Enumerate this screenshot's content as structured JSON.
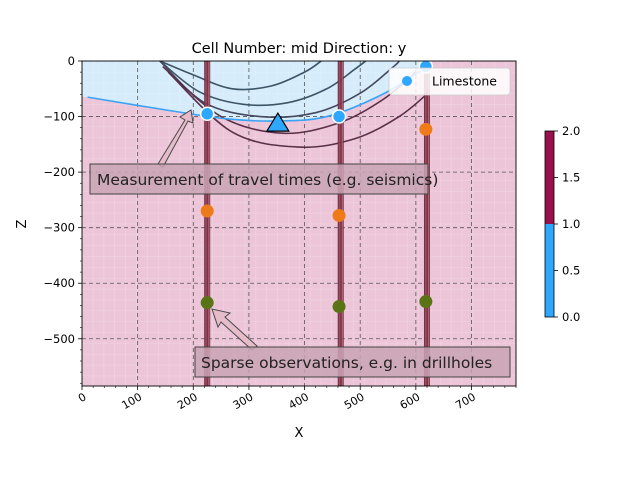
{
  "chart_data": {
    "type": "scatter",
    "title": "Cell Number: mid Direction: y",
    "xlabel": "X",
    "ylabel": "Z",
    "xlim": [
      0,
      780
    ],
    "ylim": [
      -585,
      0
    ],
    "xticks": [
      0,
      100,
      200,
      300,
      400,
      500,
      600,
      700
    ],
    "yticks": [
      0,
      -100,
      -200,
      -300,
      -400,
      -500
    ],
    "grid": true,
    "legend": {
      "placement": "top-right",
      "entries": [
        "Limestone"
      ]
    },
    "colorbar": {
      "min": 0.0,
      "max": 2.0,
      "ticks": [
        "0.0",
        "0.5",
        "1.0",
        "1.5",
        "2.0"
      ],
      "colors": [
        "#2ea8ff",
        "#98104e"
      ]
    },
    "regions": {
      "upper_color": "#d6ecfb",
      "lower_color": "#ecc6d8"
    },
    "surface_boundary": [
      {
        "x": 10,
        "z": -65
      },
      {
        "x": 150,
        "z": -88
      },
      {
        "x": 260,
        "z": -104
      },
      {
        "x": 350,
        "z": -108
      },
      {
        "x": 440,
        "z": -100
      },
      {
        "x": 540,
        "z": -60
      },
      {
        "x": 620,
        "z": -10
      }
    ],
    "contours": [
      [
        {
          "x": 140,
          "z": 0
        },
        {
          "x": 200,
          "z": -25
        },
        {
          "x": 270,
          "z": -50
        },
        {
          "x": 340,
          "z": -45
        },
        {
          "x": 400,
          "z": -20
        },
        {
          "x": 430,
          "z": 0
        }
      ],
      [
        {
          "x": 140,
          "z": 0
        },
        {
          "x": 210,
          "z": -55
        },
        {
          "x": 290,
          "z": -78
        },
        {
          "x": 370,
          "z": -75
        },
        {
          "x": 440,
          "z": -50
        },
        {
          "x": 490,
          "z": -15
        },
        {
          "x": 510,
          "z": 0
        }
      ],
      [
        {
          "x": 140,
          "z": 0
        },
        {
          "x": 220,
          "z": -75
        },
        {
          "x": 320,
          "z": -100
        },
        {
          "x": 420,
          "z": -93
        },
        {
          "x": 500,
          "z": -58
        },
        {
          "x": 560,
          "z": -10
        },
        {
          "x": 570,
          "z": 0
        }
      ],
      [
        {
          "x": 145,
          "z": -10
        },
        {
          "x": 250,
          "z": -100
        },
        {
          "x": 360,
          "z": -130
        },
        {
          "x": 460,
          "z": -112
        },
        {
          "x": 540,
          "z": -70
        },
        {
          "x": 600,
          "z": -20
        }
      ],
      [
        {
          "x": 155,
          "z": -20
        },
        {
          "x": 270,
          "z": -128
        },
        {
          "x": 390,
          "z": -155
        },
        {
          "x": 490,
          "z": -140
        },
        {
          "x": 570,
          "z": -100
        },
        {
          "x": 625,
          "z": -55
        }
      ]
    ],
    "boreholes": [
      {
        "x": 225
      },
      {
        "x": 465
      },
      {
        "x": 620
      }
    ],
    "series": [
      {
        "name": "Limestone",
        "color": "#2ea8ff",
        "points": [
          {
            "x": 225,
            "z": -95
          },
          {
            "x": 462,
            "z": -100
          },
          {
            "x": 618,
            "z": -10
          }
        ]
      },
      {
        "color": "#ee7a1a",
        "points": [
          {
            "x": 225,
            "z": -270
          },
          {
            "x": 462,
            "z": -278
          },
          {
            "x": 618,
            "z": -123
          }
        ]
      },
      {
        "color": "#5a7314",
        "points": [
          {
            "x": 225,
            "z": -435
          },
          {
            "x": 462,
            "z": -442
          },
          {
            "x": 618,
            "z": -433
          }
        ]
      }
    ],
    "marker_triangle": {
      "x": 352,
      "z": -110,
      "color": "#2ea8ff"
    },
    "annotations": [
      {
        "text": "Measurement of travel times (e.g. seismics)"
      },
      {
        "text": "Sparse observations, e.g. in drillholes"
      }
    ]
  }
}
